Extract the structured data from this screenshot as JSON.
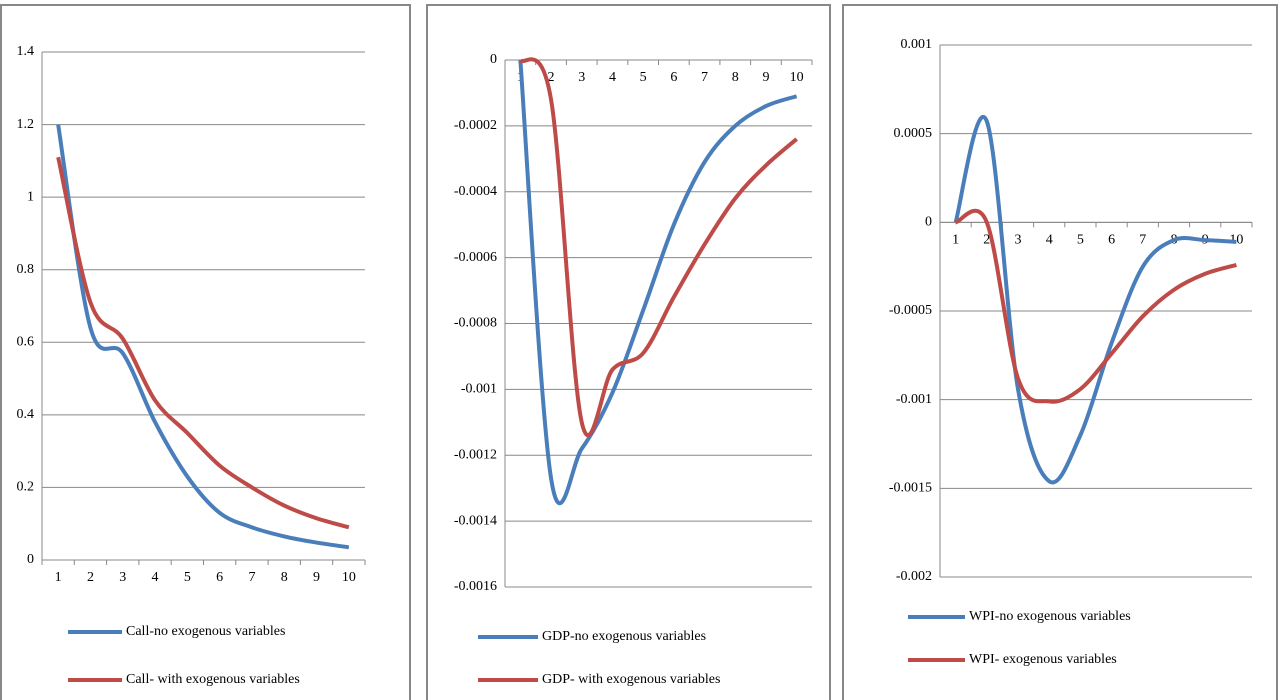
{
  "chart_data": [
    {
      "type": "line",
      "categories": [
        1,
        2,
        3,
        4,
        5,
        6,
        7,
        8,
        9,
        10
      ],
      "ylim": [
        0,
        1.4
      ],
      "yticks": [
        0,
        0.2,
        0.4,
        0.6,
        0.8,
        1,
        1.2,
        1.4
      ],
      "grid": true,
      "series": [
        {
          "name": "Call-no exogenous variables",
          "color": "#4a7ebb",
          "values": [
            1.2,
            0.64,
            0.57,
            0.38,
            0.23,
            0.13,
            0.09,
            0.065,
            0.048,
            0.035
          ]
        },
        {
          "name": "Call- with exogenous variables",
          "color": "#be4b48",
          "values": [
            1.11,
            0.71,
            0.61,
            0.44,
            0.35,
            0.26,
            0.2,
            0.15,
            0.115,
            0.09
          ]
        }
      ]
    },
    {
      "type": "line",
      "categories": [
        1,
        2,
        3,
        4,
        5,
        6,
        7,
        8,
        9,
        10
      ],
      "ylim": [
        -0.0016,
        0
      ],
      "yticks": [
        -0.0016,
        -0.0014,
        -0.0012,
        -0.001,
        -0.0008,
        -0.0006,
        -0.0004,
        -0.0002,
        0
      ],
      "grid": true,
      "series": [
        {
          "name": "GDP-no exogenous variables",
          "color": "#4a7ebb",
          "values": [
            0,
            -0.00127,
            -0.00118,
            -0.00101,
            -0.00076,
            -0.0005,
            -0.00031,
            -0.0002,
            -0.00014,
            -0.00011
          ]
        },
        {
          "name": "GDP- with exogenous variables",
          "color": "#be4b48",
          "values": [
            0,
            -0.00012,
            -0.0011,
            -0.00094,
            -0.00089,
            -0.00072,
            -0.00056,
            -0.00042,
            -0.00032,
            -0.00024
          ]
        }
      ]
    },
    {
      "type": "line",
      "categories": [
        1,
        2,
        3,
        4,
        5,
        6,
        7,
        8,
        9,
        10
      ],
      "ylim": [
        -0.002,
        0.001
      ],
      "yticks": [
        -0.002,
        -0.0015,
        -0.001,
        -0.0005,
        0,
        0.0005,
        0.001
      ],
      "grid": true,
      "series": [
        {
          "name": "WPI-no exogenous variables",
          "color": "#4a7ebb",
          "values": [
            0,
            0.00057,
            -0.00094,
            -0.00146,
            -0.0012,
            -0.00068,
            -0.00025,
            -0.0001,
            -0.0001,
            -0.00011
          ]
        },
        {
          "name": "WPI- exogenous variables",
          "color": "#be4b48",
          "values": [
            0,
            0,
            -0.00088,
            -0.00101,
            -0.00094,
            -0.00074,
            -0.00053,
            -0.00038,
            -0.00029,
            -0.00024
          ]
        }
      ]
    }
  ]
}
